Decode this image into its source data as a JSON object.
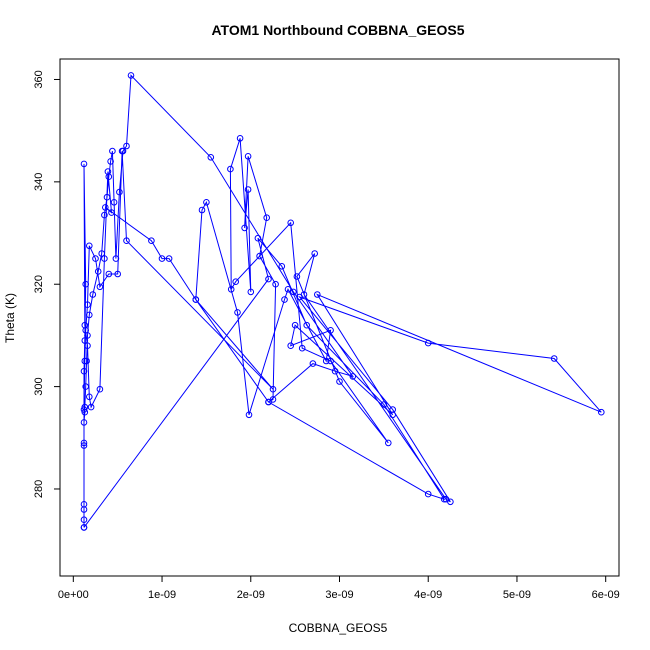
{
  "chart_data": {
    "type": "line",
    "title": "ATOM1 Northbound COBBNA_GEOS5",
    "xlabel": "COBBNA_GEOS5",
    "ylabel": "Theta (K)",
    "xlim": [
      -1.5e-10,
      6.15e-09
    ],
    "ylim": [
      263,
      364
    ],
    "x_ticks": [
      0,
      1e-09,
      2e-09,
      3e-09,
      4e-09,
      5e-09,
      6e-09
    ],
    "x_tick_labels": [
      "0e+00",
      "1e-09",
      "2e-09",
      "3e-09",
      "4e-09",
      "5e-09",
      "6e-09"
    ],
    "y_ticks": [
      280,
      300,
      320,
      340,
      360
    ],
    "y_tick_labels": [
      "280",
      "300",
      "320",
      "340",
      "360"
    ],
    "grid": false,
    "series": [
      {
        "color": "#0000ff",
        "marker": "open-circle",
        "points": [
          [
            1.2e-10,
            272.5
          ],
          [
            1.2e-10,
            274.0
          ],
          [
            1.2e-10,
            276.0
          ],
          [
            1.2e-10,
            277.0
          ],
          [
            1.2e-10,
            289.0
          ],
          [
            1.2e-10,
            293.0
          ],
          [
            1.3e-10,
            295.0
          ],
          [
            1.3e-10,
            296.0
          ],
          [
            1.4e-10,
            300.0
          ],
          [
            1.5e-10,
            305.0
          ],
          [
            1.6e-10,
            310.0
          ],
          [
            1.8e-10,
            314.0
          ],
          [
            2.2e-10,
            318.0
          ],
          [
            2.8e-10,
            322.5
          ],
          [
            3.2e-10,
            326.0
          ],
          [
            3.5e-10,
            333.5
          ],
          [
            3.8e-10,
            337.0
          ],
          [
            4e-10,
            341.0
          ],
          [
            4.2e-10,
            344.0
          ],
          [
            4.4e-10,
            346.0
          ],
          [
            4.6e-10,
            336.0
          ],
          [
            4.8e-10,
            325.0
          ],
          [
            5.2e-10,
            338.0
          ],
          [
            5.6e-10,
            346.0
          ],
          [
            6e-10,
            347.0
          ],
          [
            6.5e-10,
            360.8
          ],
          [
            1.55e-09,
            344.8
          ],
          [
            2.48e-09,
            318.5
          ],
          [
            3.15e-09,
            302.0
          ],
          [
            2.95e-09,
            303.0
          ],
          [
            2.7e-09,
            304.5
          ],
          [
            2.2e-09,
            297.0
          ],
          [
            2.25e-09,
            297.5
          ],
          [
            2.28e-09,
            320.0
          ],
          [
            2.1e-09,
            325.5
          ],
          [
            2.18e-09,
            333.0
          ],
          [
            1.97e-09,
            345.0
          ],
          [
            1.93e-09,
            331.0
          ],
          [
            1.97e-09,
            338.5
          ],
          [
            2e-09,
            318.5
          ],
          [
            1.88e-09,
            348.5
          ],
          [
            1.77e-09,
            342.5
          ],
          [
            1.78e-09,
            319.0
          ],
          [
            1.83e-09,
            320.5
          ],
          [
            2.45e-09,
            332.0
          ],
          [
            2.58e-09,
            307.5
          ],
          [
            2.9e-09,
            305.0
          ],
          [
            3.55e-09,
            289.0
          ],
          [
            3e-09,
            301.0
          ],
          [
            2.52e-09,
            321.5
          ],
          [
            2.72e-09,
            326.0
          ],
          [
            2.6e-09,
            318.0
          ],
          [
            4.2e-09,
            278.0
          ],
          [
            4.25e-09,
            277.5
          ],
          [
            3.6e-09,
            295.5
          ],
          [
            2.55e-09,
            317.5
          ],
          [
            4e-09,
            308.5
          ],
          [
            5.42e-09,
            305.5
          ],
          [
            5.95e-09,
            295.0
          ],
          [
            2.75e-09,
            318.0
          ],
          [
            3.6e-09,
            294.5
          ],
          [
            2.5e-09,
            312.0
          ],
          [
            2.45e-09,
            308.0
          ],
          [
            2.9e-09,
            311.0
          ],
          [
            2.85e-09,
            305.0
          ],
          [
            2.42e-09,
            319.0
          ],
          [
            2.38e-09,
            317.0
          ],
          [
            1.98e-09,
            294.5
          ],
          [
            1.85e-09,
            314.5
          ],
          [
            1.5e-09,
            336.0
          ],
          [
            1.45e-09,
            334.5
          ],
          [
            1.38e-09,
            317.0
          ],
          [
            2.25e-09,
            299.5
          ],
          [
            6e-10,
            328.5
          ],
          [
            5.5e-10,
            346.0
          ],
          [
            5e-10,
            322.0
          ],
          [
            4e-10,
            322.0
          ],
          [
            3e-10,
            319.5
          ],
          [
            2.5e-10,
            325.0
          ],
          [
            1.8e-10,
            327.5
          ],
          [
            1.6e-10,
            316.0
          ],
          [
            1.4e-10,
            311.0
          ],
          [
            1.3e-10,
            305.0
          ],
          [
            1.2e-10,
            295.5
          ],
          [
            1.2e-10,
            288.5
          ],
          [
            1.2e-10,
            303.0
          ],
          [
            1.3e-10,
            309.0
          ],
          [
            1.4e-10,
            320.0
          ],
          [
            1.2e-10,
            343.5
          ],
          [
            1.3e-10,
            312.0
          ],
          [
            1.6e-10,
            308.0
          ],
          [
            1.8e-10,
            298.0
          ],
          [
            2e-10,
            296.0
          ],
          [
            3e-10,
            299.5
          ],
          [
            3.5e-10,
            325.0
          ],
          [
            3.9e-10,
            342.0
          ],
          [
            4.3e-10,
            334.0
          ],
          [
            3.6e-10,
            335.0
          ],
          [
            8.8e-10,
            328.5
          ],
          [
            1e-09,
            325.0
          ],
          [
            1.08e-09,
            325.0
          ],
          [
            1.38e-09,
            317.0
          ],
          [
            2.2e-09,
            297.0
          ],
          [
            4e-09,
            279.0
          ],
          [
            4.18e-09,
            278.0
          ],
          [
            3.5e-09,
            296.5
          ],
          [
            2.63e-09,
            312.0
          ],
          [
            2.35e-09,
            323.5
          ],
          [
            2.08e-09,
            329.0
          ],
          [
            2.2e-09,
            321.0
          ],
          [
            1.2e-10,
            272.5
          ]
        ]
      }
    ]
  }
}
